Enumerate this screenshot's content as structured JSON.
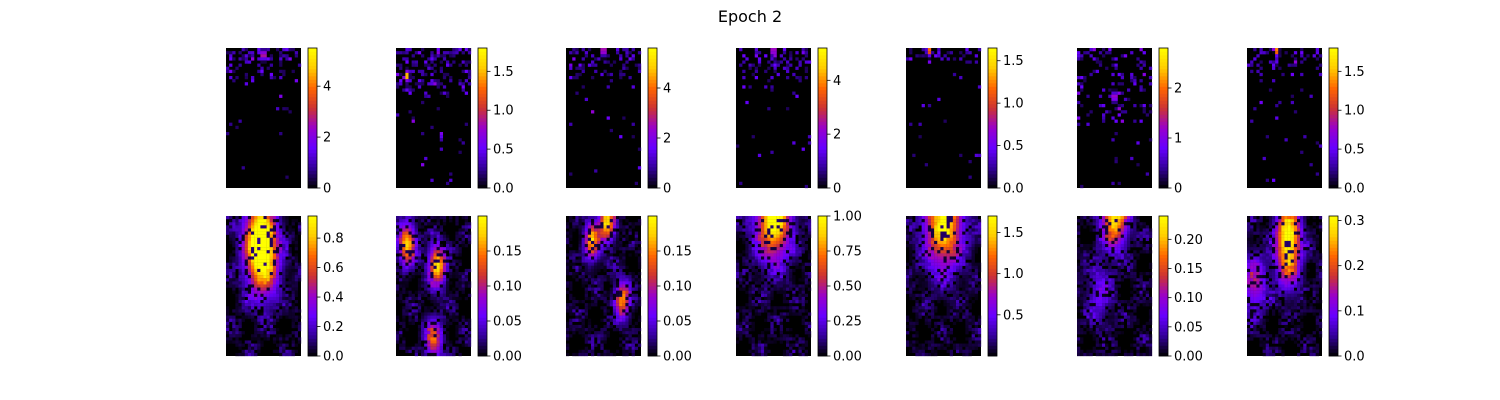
{
  "figure": {
    "title": "Epoch 2"
  },
  "palette": {
    "colormap": "gnuplot",
    "stops": [
      "#000000",
      "#330099",
      "#6600ff",
      "#9900cc",
      "#cc3333",
      "#ff6600",
      "#ffcc00",
      "#ffff00"
    ]
  },
  "chart_data": [
    {
      "type": "heatmap",
      "row": 1,
      "col": 1,
      "clim": [
        0,
        5.5
      ],
      "ticks": [
        "0",
        "2",
        "4"
      ],
      "tick_values": [
        0,
        2,
        4
      ],
      "pattern": {
        "kind": "sparse",
        "hotspots": [
          [
            0.5,
            0.05,
            5.5
          ]
        ],
        "density": 0.45,
        "band": 0.25
      }
    },
    {
      "type": "heatmap",
      "row": 1,
      "col": 2,
      "clim": [
        0,
        1.8
      ],
      "ticks": [
        "0.0",
        "0.5",
        "1.0",
        "1.5"
      ],
      "tick_values": [
        0,
        0.5,
        1.0,
        1.5
      ],
      "pattern": {
        "kind": "sparse",
        "hotspots": [
          [
            0.15,
            0.2,
            1.7
          ]
        ],
        "density": 0.5,
        "band": 0.35
      }
    },
    {
      "type": "heatmap",
      "row": 1,
      "col": 3,
      "clim": [
        0,
        5.6
      ],
      "ticks": [
        "0",
        "2",
        "4"
      ],
      "tick_values": [
        0,
        2,
        4
      ],
      "pattern": {
        "kind": "sparse",
        "hotspots": [
          [
            0.5,
            0.02,
            5.6
          ]
        ],
        "density": 0.45,
        "band": 0.25
      }
    },
    {
      "type": "heatmap",
      "row": 1,
      "col": 4,
      "clim": [
        0,
        5.2
      ],
      "ticks": [
        "0",
        "2",
        "4"
      ],
      "tick_values": [
        0,
        2,
        4
      ],
      "pattern": {
        "kind": "sparse",
        "hotspots": [
          [
            0.5,
            0.02,
            5.0
          ]
        ],
        "density": 0.4,
        "band": 0.3
      }
    },
    {
      "type": "heatmap",
      "row": 1,
      "col": 5,
      "clim": [
        0,
        1.65
      ],
      "ticks": [
        "0.0",
        "0.5",
        "1.0",
        "1.5"
      ],
      "tick_values": [
        0,
        0.5,
        1.0,
        1.5
      ],
      "pattern": {
        "kind": "sparse",
        "hotspots": [
          [
            0.3,
            0.02,
            1.6
          ]
        ],
        "density": 0.35,
        "band": 0.12
      }
    },
    {
      "type": "heatmap",
      "row": 1,
      "col": 6,
      "clim": [
        0,
        2.8
      ],
      "ticks": [
        "0",
        "1",
        "2"
      ],
      "tick_values": [
        0,
        1,
        2
      ],
      "pattern": {
        "kind": "sparse",
        "hotspots": [
          [
            0.5,
            0.35,
            2.5
          ]
        ],
        "density": 0.3,
        "band": 0.55
      }
    },
    {
      "type": "heatmap",
      "row": 1,
      "col": 7,
      "clim": [
        0,
        1.8
      ],
      "ticks": [
        "0.0",
        "0.5",
        "1.0",
        "1.5"
      ],
      "tick_values": [
        0,
        0.5,
        1.0,
        1.5
      ],
      "pattern": {
        "kind": "sparse",
        "hotspots": [
          [
            0.4,
            0.02,
            1.5
          ]
        ],
        "density": 0.35,
        "band": 0.2
      }
    },
    {
      "type": "heatmap",
      "row": 2,
      "col": 1,
      "clim": [
        0,
        0.95
      ],
      "ticks": [
        "0.0",
        "0.2",
        "0.4",
        "0.6",
        "0.8"
      ],
      "tick_values": [
        0,
        0.2,
        0.4,
        0.6,
        0.8
      ],
      "pattern": {
        "kind": "smooth",
        "hotspots": [
          [
            0.45,
            0.15,
            0.9
          ],
          [
            0.5,
            0.35,
            0.6
          ]
        ],
        "spread": 0.18
      }
    },
    {
      "type": "heatmap",
      "row": 2,
      "col": 2,
      "clim": [
        0,
        0.2
      ],
      "ticks": [
        "0.00",
        "0.05",
        "0.10",
        "0.15"
      ],
      "tick_values": [
        0,
        0.05,
        0.1,
        0.15
      ],
      "pattern": {
        "kind": "smooth",
        "hotspots": [
          [
            0.15,
            0.2,
            0.17
          ],
          [
            0.55,
            0.35,
            0.18
          ],
          [
            0.5,
            0.88,
            0.12
          ]
        ],
        "spread": 0.1
      }
    },
    {
      "type": "heatmap",
      "row": 2,
      "col": 3,
      "clim": [
        0,
        0.2
      ],
      "ticks": [
        "0.00",
        "0.05",
        "0.10",
        "0.15"
      ],
      "tick_values": [
        0,
        0.05,
        0.1,
        0.15
      ],
      "pattern": {
        "kind": "smooth",
        "hotspots": [
          [
            0.35,
            0.18,
            0.16
          ],
          [
            0.75,
            0.6,
            0.15
          ],
          [
            0.55,
            0.05,
            0.18
          ]
        ],
        "spread": 0.09
      }
    },
    {
      "type": "heatmap",
      "row": 2,
      "col": 4,
      "clim": [
        0,
        1.0
      ],
      "ticks": [
        "0.00",
        "0.25",
        "0.50",
        "0.75",
        "1.00"
      ],
      "tick_values": [
        0,
        0.25,
        0.5,
        0.75,
        1.0
      ],
      "pattern": {
        "kind": "smooth",
        "hotspots": [
          [
            0.5,
            0.02,
            1.0
          ]
        ],
        "spread": 0.2
      }
    },
    {
      "type": "heatmap",
      "row": 2,
      "col": 5,
      "clim": [
        0,
        1.7
      ],
      "ticks": [
        "0.5",
        "1.0",
        "1.5"
      ],
      "tick_values": [
        0.5,
        1.0,
        1.5
      ],
      "pattern": {
        "kind": "smooth",
        "hotspots": [
          [
            0.5,
            0.05,
            1.6
          ]
        ],
        "spread": 0.22
      }
    },
    {
      "type": "heatmap",
      "row": 2,
      "col": 6,
      "clim": [
        0,
        0.24
      ],
      "ticks": [
        "0.00",
        "0.05",
        "0.10",
        "0.15",
        "0.20"
      ],
      "tick_values": [
        0,
        0.05,
        0.1,
        0.15,
        0.2
      ],
      "pattern": {
        "kind": "smooth",
        "hotspots": [
          [
            0.5,
            0.0,
            0.22
          ],
          [
            0.3,
            0.55,
            0.06
          ]
        ],
        "spread": 0.15
      }
    },
    {
      "type": "heatmap",
      "row": 2,
      "col": 7,
      "clim": [
        0,
        0.31
      ],
      "ticks": [
        "0.0",
        "0.1",
        "0.2",
        "0.3"
      ],
      "tick_values": [
        0,
        0.1,
        0.2,
        0.3
      ],
      "pattern": {
        "kind": "smooth",
        "hotspots": [
          [
            0.55,
            0.12,
            0.28
          ],
          [
            0.1,
            0.48,
            0.14
          ],
          [
            0.55,
            0.35,
            0.15
          ]
        ],
        "spread": 0.14
      }
    }
  ]
}
